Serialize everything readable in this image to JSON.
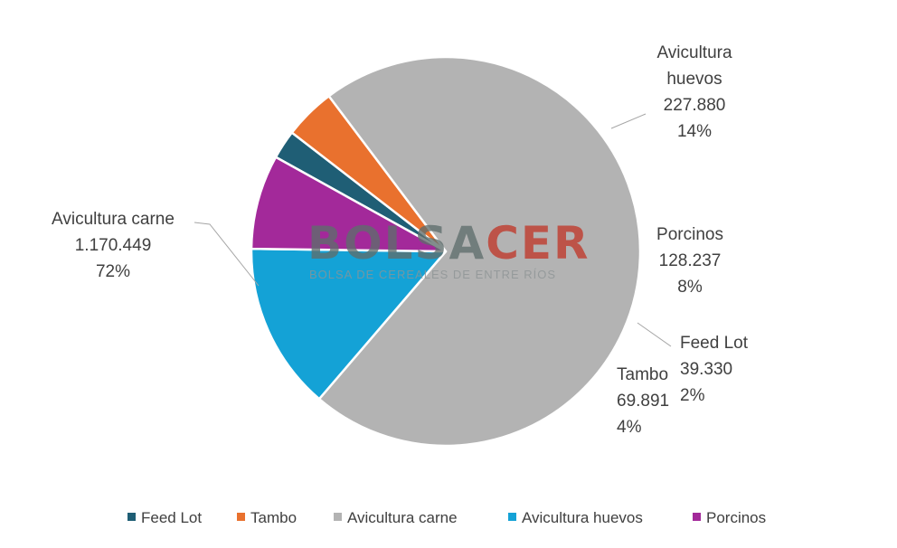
{
  "chart_data": {
    "type": "pie",
    "slices": [
      {
        "name": "Feed Lot",
        "value": 39330,
        "value_label": "39.330",
        "percent_label": "2%",
        "color": "#1f5e75"
      },
      {
        "name": "Tambo",
        "value": 69891,
        "value_label": "69.891",
        "percent_label": "4%",
        "color": "#e9712e"
      },
      {
        "name": "Avicultura carne",
        "value": 1170449,
        "value_label": "1.170.449",
        "percent_label": "72%",
        "color": "#b3b3b3"
      },
      {
        "name": "Avicultura huevos",
        "value": 227880,
        "value_label": "227.880",
        "percent_label": "14%",
        "color": "#14a2d6"
      },
      {
        "name": "Porcinos",
        "value": 128237,
        "value_label": "128.237",
        "percent_label": "8%",
        "color": "#a3299a"
      }
    ],
    "legend_position": "bottom",
    "data_labels": "outside"
  },
  "watermark": {
    "brand_left": "BOLSA",
    "brand_right": "CER",
    "tagline": "BOLSA DE CEREALES DE ENTRE RÍOS",
    "color_left": "#5f6e6d",
    "color_right": "#c0392b"
  }
}
